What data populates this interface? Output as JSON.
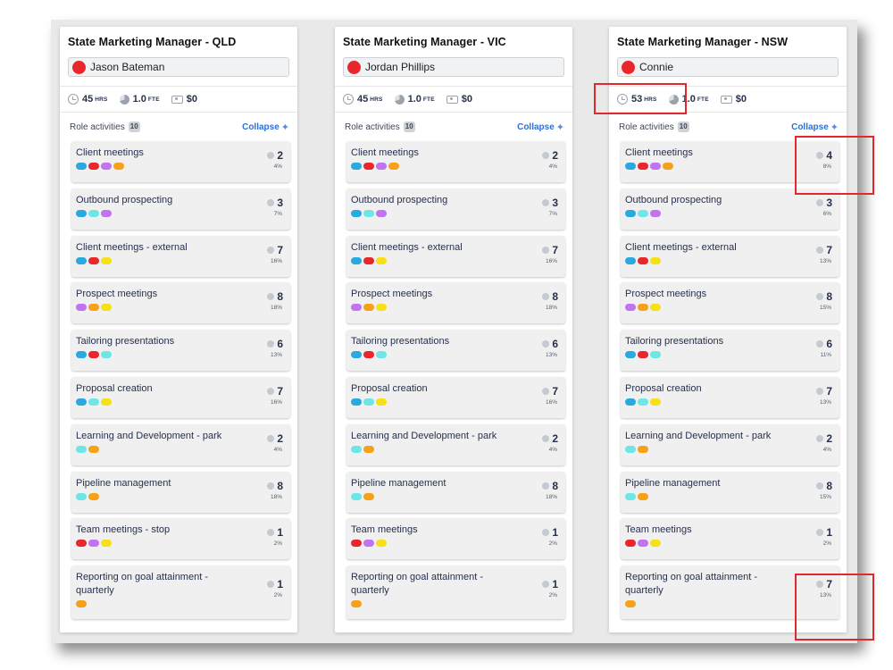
{
  "colors": {
    "red": "#e8262b",
    "blue": "#2aa9e0",
    "teal": "#6fe6e6",
    "purple": "#c173f0",
    "orange": "#f7a01a",
    "yellow": "#f7e018"
  },
  "collapse_label": "Collapse",
  "columns": [
    {
      "title": "State Marketing Manager - QLD",
      "person": "Jason Bateman",
      "hours": "45",
      "hours_unit": "HRS",
      "fte": "1.0",
      "fte_unit": "FTE",
      "cost": "$0",
      "activities_label": "Role activities",
      "activities_count": "10",
      "cards": [
        {
          "title": "Client meetings",
          "dots": [
            "blue",
            "red",
            "purple",
            "orange"
          ],
          "hours": "2",
          "pct": "4%"
        },
        {
          "title": "Outbound prospecting",
          "dots": [
            "blue",
            "teal",
            "purple"
          ],
          "hours": "3",
          "pct": "7%"
        },
        {
          "title": "Client meetings - external",
          "dots": [
            "blue",
            "red",
            "yellow"
          ],
          "hours": "7",
          "pct": "16%"
        },
        {
          "title": "Prospect meetings",
          "dots": [
            "purple",
            "orange",
            "yellow"
          ],
          "hours": "8",
          "pct": "18%"
        },
        {
          "title": "Tailoring presentations",
          "dots": [
            "blue",
            "red",
            "teal"
          ],
          "hours": "6",
          "pct": "13%"
        },
        {
          "title": "Proposal creation",
          "dots": [
            "blue",
            "teal",
            "yellow"
          ],
          "hours": "7",
          "pct": "16%"
        },
        {
          "title": "Learning and Development - park",
          "dots": [
            "teal",
            "orange"
          ],
          "hours": "2",
          "pct": "4%"
        },
        {
          "title": "Pipeline management",
          "dots": [
            "teal",
            "orange"
          ],
          "hours": "8",
          "pct": "18%"
        },
        {
          "title": "Team meetings - stop",
          "dots": [
            "red",
            "purple",
            "yellow"
          ],
          "hours": "1",
          "pct": "2%"
        },
        {
          "title": "Reporting on goal attainment - quarterly",
          "dots": [
            "orange"
          ],
          "hours": "1",
          "pct": "2%"
        }
      ]
    },
    {
      "title": "State Marketing Manager - VIC",
      "person": "Jordan Phillips",
      "hours": "45",
      "hours_unit": "HRS",
      "fte": "1.0",
      "fte_unit": "FTE",
      "cost": "$0",
      "activities_label": "Role activities",
      "activities_count": "10",
      "cards": [
        {
          "title": "Client meetings",
          "dots": [
            "blue",
            "red",
            "purple",
            "orange"
          ],
          "hours": "2",
          "pct": "4%"
        },
        {
          "title": "Outbound prospecting",
          "dots": [
            "blue",
            "teal",
            "purple"
          ],
          "hours": "3",
          "pct": "7%"
        },
        {
          "title": "Client meetings - external",
          "dots": [
            "blue",
            "red",
            "yellow"
          ],
          "hours": "7",
          "pct": "16%"
        },
        {
          "title": "Prospect meetings",
          "dots": [
            "purple",
            "orange",
            "yellow"
          ],
          "hours": "8",
          "pct": "18%"
        },
        {
          "title": "Tailoring presentations",
          "dots": [
            "blue",
            "red",
            "teal"
          ],
          "hours": "6",
          "pct": "13%"
        },
        {
          "title": "Proposal creation",
          "dots": [
            "blue",
            "teal",
            "yellow"
          ],
          "hours": "7",
          "pct": "16%"
        },
        {
          "title": "Learning and Development - park",
          "dots": [
            "teal",
            "orange"
          ],
          "hours": "2",
          "pct": "4%"
        },
        {
          "title": "Pipeline management",
          "dots": [
            "teal",
            "orange"
          ],
          "hours": "8",
          "pct": "18%"
        },
        {
          "title": "Team meetings",
          "dots": [
            "red",
            "purple",
            "yellow"
          ],
          "hours": "1",
          "pct": "2%"
        },
        {
          "title": "Reporting on goal attainment - quarterly",
          "dots": [
            "orange"
          ],
          "hours": "1",
          "pct": "2%"
        }
      ]
    },
    {
      "title": "State Marketing Manager - NSW",
      "person": "Connie",
      "hours": "53",
      "hours_unit": "HRS",
      "fte": "1.0",
      "fte_unit": "FTE",
      "cost": "$0",
      "activities_label": "Role activities",
      "activities_count": "10",
      "cards": [
        {
          "title": "Client meetings",
          "dots": [
            "blue",
            "red",
            "purple",
            "orange"
          ],
          "hours": "4",
          "pct": "8%"
        },
        {
          "title": "Outbound prospecting",
          "dots": [
            "blue",
            "teal",
            "purple"
          ],
          "hours": "3",
          "pct": "6%"
        },
        {
          "title": "Client meetings - external",
          "dots": [
            "blue",
            "red",
            "yellow"
          ],
          "hours": "7",
          "pct": "13%"
        },
        {
          "title": "Prospect meetings",
          "dots": [
            "purple",
            "orange",
            "yellow"
          ],
          "hours": "8",
          "pct": "15%"
        },
        {
          "title": "Tailoring presentations",
          "dots": [
            "blue",
            "red",
            "teal"
          ],
          "hours": "6",
          "pct": "11%"
        },
        {
          "title": "Proposal creation",
          "dots": [
            "blue",
            "teal",
            "yellow"
          ],
          "hours": "7",
          "pct": "13%"
        },
        {
          "title": "Learning and Development - park",
          "dots": [
            "teal",
            "orange"
          ],
          "hours": "2",
          "pct": "4%"
        },
        {
          "title": "Pipeline management",
          "dots": [
            "teal",
            "orange"
          ],
          "hours": "8",
          "pct": "15%"
        },
        {
          "title": "Team meetings",
          "dots": [
            "red",
            "purple",
            "yellow"
          ],
          "hours": "1",
          "pct": "2%"
        },
        {
          "title": "Reporting on goal attainment - quarterly",
          "dots": [
            "orange"
          ],
          "hours": "7",
          "pct": "13%"
        }
      ]
    }
  ]
}
